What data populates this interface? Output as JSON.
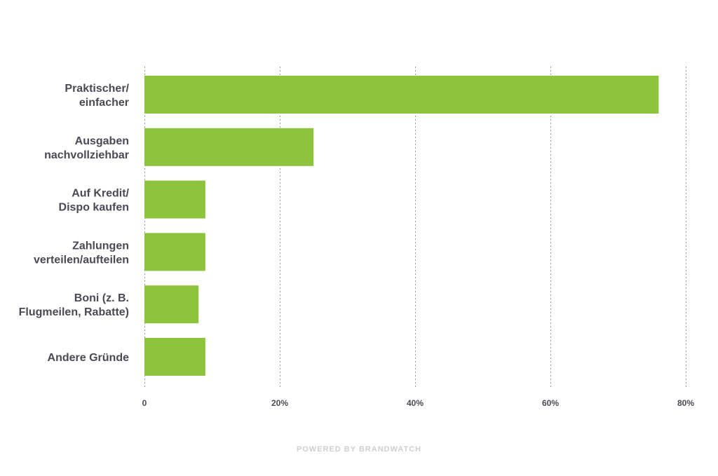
{
  "chart_data": {
    "type": "bar",
    "orientation": "horizontal",
    "categories": [
      [
        "Praktischer/",
        "einfacher"
      ],
      [
        "Ausgaben",
        "nachvollziehbar"
      ],
      [
        "Auf Kredit/",
        "Dispo kaufen"
      ],
      [
        "Zahlungen",
        "verteilen/aufteilen"
      ],
      [
        "Boni (z. B.",
        "Flugmeilen, Rabatte)"
      ],
      [
        "Andere Gründe"
      ]
    ],
    "values": [
      76,
      25,
      9,
      9,
      8,
      9
    ],
    "xlim": [
      0,
      80
    ],
    "ticks": [
      0,
      20,
      40,
      60,
      80
    ],
    "tick_labels": [
      "0",
      "20%",
      "40%",
      "60%",
      "80%"
    ],
    "grid": true,
    "bar_color": "#8cc43c"
  },
  "footer": "POWERED BY BRANDWATCH"
}
